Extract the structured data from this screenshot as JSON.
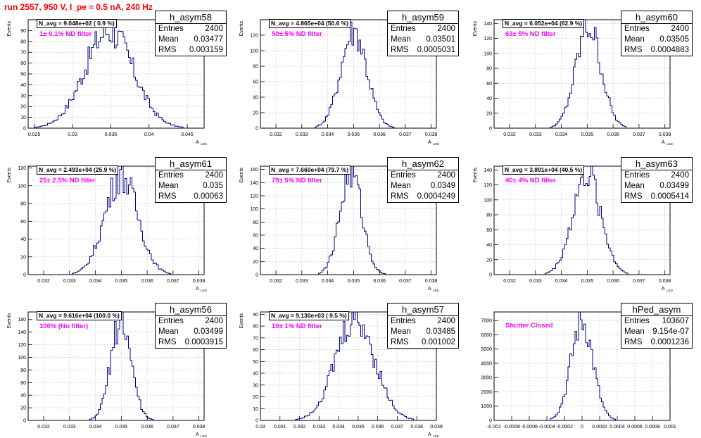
{
  "title": "run 2557,   950 V, I_pe ≈ 0.5 nA, 240 Hz",
  "colors": {
    "histogram": "#00008b",
    "title": "#ff0000",
    "filter": "#ff00ff",
    "grid": "#bfbfbf"
  },
  "stat_labels": {
    "entries": "Entries",
    "mean": "Mean",
    "rms": "RMS"
  },
  "chart_data": [
    {
      "type": "histogram",
      "name": "h_asym58",
      "entries": "2400",
      "mean": "0.03477",
      "rms": "0.003159",
      "navg": "N_avg = 9.048e+02 ( 0.9 %)",
      "filter": "1± 0.1% ND filter",
      "ylabel": "Events",
      "xlabel": "A",
      "xlim": [
        0.0242,
        0.0472
      ],
      "ylim": [
        0,
        100
      ],
      "xticks": [
        0.025,
        0.03,
        0.035,
        0.04,
        0.045
      ],
      "xticklabels": [
        "0.025",
        "0.03",
        "0.035",
        "0.04",
        "0.045"
      ],
      "yticks": [
        0,
        10,
        20,
        30,
        40,
        50,
        60,
        70,
        80,
        90
      ],
      "yticklabels": [
        "0",
        "10",
        "20",
        "30",
        "40",
        "50",
        "60",
        "70",
        "80",
        "90"
      ],
      "dist": {
        "center": 0.03477,
        "sigma": 0.003159,
        "peak": 90
      }
    },
    {
      "type": "histogram",
      "name": "h_asym59",
      "entries": "2400",
      "mean": "0.03501",
      "rms": "0.0005031",
      "navg": "N_avg = 4.865e+04 (50.6 %)",
      "filter": "50± 5% ND filter",
      "ylabel": "Events",
      "xlabel": "A",
      "xlim": [
        0.0314,
        0.0382
      ],
      "ylim": [
        0,
        140
      ],
      "xticks": [
        0.032,
        0.033,
        0.034,
        0.035,
        0.036,
        0.037,
        0.038
      ],
      "xticklabels": [
        "0.032",
        "0.033",
        "0.034",
        "0.035",
        "0.036",
        "0.037",
        "0.038"
      ],
      "yticks": [
        0,
        20,
        40,
        60,
        80,
        100,
        120
      ],
      "yticklabels": [
        "0",
        "20",
        "40",
        "60",
        "80",
        "100",
        "120"
      ],
      "dist": {
        "center": 0.03501,
        "sigma": 0.0005031,
        "peak": 126
      }
    },
    {
      "type": "histogram",
      "name": "h_asym60",
      "entries": "2400",
      "mean": "0.03505",
      "rms": "0.0004883",
      "navg": "N_avg = 6.052e+04 (62.9 %)",
      "filter": "63± 5% ND filter",
      "ylabel": "Events",
      "xlabel": "A",
      "xlim": [
        0.0314,
        0.0382
      ],
      "ylim": [
        0,
        145
      ],
      "xticks": [
        0.032,
        0.033,
        0.034,
        0.035,
        0.036,
        0.037,
        0.038
      ],
      "xticklabels": [
        "0.032",
        "0.033",
        "0.034",
        "0.035",
        "0.036",
        "0.037",
        "0.038"
      ],
      "yticks": [
        0,
        20,
        40,
        60,
        80,
        100,
        120,
        140
      ],
      "yticklabels": [
        "0",
        "20",
        "40",
        "60",
        "80",
        "100",
        "120",
        "140"
      ],
      "dist": {
        "center": 0.03505,
        "sigma": 0.0004883,
        "peak": 136
      }
    },
    {
      "type": "histogram",
      "name": "h_asym61",
      "entries": "2400",
      "mean": "0.035",
      "rms": "0.00063",
      "navg": "N_avg = 2.493e+04 (25.9 %)",
      "filter": "25± 2.5% ND filter",
      "ylabel": "Events",
      "xlabel": "A",
      "xlim": [
        0.0314,
        0.0382
      ],
      "ylim": [
        0,
        122
      ],
      "xticks": [
        0.032,
        0.033,
        0.034,
        0.035,
        0.036,
        0.037,
        0.038
      ],
      "xticklabels": [
        "0.032",
        "0.033",
        "0.034",
        "0.035",
        "0.036",
        "0.037",
        "0.038"
      ],
      "yticks": [
        0,
        20,
        40,
        60,
        80,
        100,
        120
      ],
      "yticklabels": [
        "0",
        "20",
        "40",
        "60",
        "80",
        "100",
        "120"
      ],
      "dist": {
        "center": 0.035,
        "sigma": 0.00063,
        "peak": 112
      }
    },
    {
      "type": "histogram",
      "name": "h_asym62",
      "entries": "2400",
      "mean": "0.0349",
      "rms": "0.0004249",
      "navg": "N_avg = 7.660e+04 (79.7 %)",
      "filter": "79± 5% ND filter",
      "ylabel": "Events",
      "xlabel": "A",
      "xlim": [
        0.0314,
        0.0382
      ],
      "ylim": [
        0,
        165
      ],
      "xticks": [
        0.032,
        0.033,
        0.034,
        0.035,
        0.036,
        0.037,
        0.038
      ],
      "xticklabels": [
        "0.032",
        "0.033",
        "0.034",
        "0.035",
        "0.036",
        "0.037",
        "0.038"
      ],
      "yticks": [
        0,
        20,
        40,
        60,
        80,
        100,
        120,
        140,
        160
      ],
      "yticklabels": [
        "0",
        "20",
        "40",
        "60",
        "80",
        "100",
        "120",
        "140",
        "160"
      ],
      "dist": {
        "center": 0.0349,
        "sigma": 0.0004249,
        "peak": 155
      }
    },
    {
      "type": "histogram",
      "name": "h_asym63",
      "entries": "2400",
      "mean": "0.03499",
      "rms": "0.0005414",
      "navg": "N_avg = 3.891e+04 (40.5 %)",
      "filter": "40± 4% ND filter",
      "ylabel": "Events",
      "xlabel": "A",
      "xlim": [
        0.0314,
        0.0382
      ],
      "ylim": [
        0,
        145
      ],
      "xticks": [
        0.032,
        0.033,
        0.034,
        0.035,
        0.036,
        0.037,
        0.038
      ],
      "xticklabels": [
        "0.032",
        "0.033",
        "0.034",
        "0.035",
        "0.036",
        "0.037",
        "0.038"
      ],
      "yticks": [
        0,
        20,
        40,
        60,
        80,
        100,
        120,
        140
      ],
      "yticklabels": [
        "0",
        "20",
        "40",
        "60",
        "80",
        "100",
        "120",
        "140"
      ],
      "dist": {
        "center": 0.03499,
        "sigma": 0.0005414,
        "peak": 135
      }
    },
    {
      "type": "histogram",
      "name": "h_asym56",
      "entries": "2400",
      "mean": "0.03499",
      "rms": "0.0003915",
      "navg": "N_avg = 9.616e+04 (100.0 %)",
      "filter": "100% (No filter)",
      "ylabel": "Events",
      "xlabel": "A",
      "xlim": [
        0.0314,
        0.0382
      ],
      "ylim": [
        0,
        172
      ],
      "xticks": [
        0.032,
        0.033,
        0.034,
        0.035,
        0.036,
        0.037,
        0.038
      ],
      "xticklabels": [
        "0.032",
        "0.033",
        "0.034",
        "0.035",
        "0.036",
        "0.037",
        "0.038"
      ],
      "yticks": [
        0,
        20,
        40,
        60,
        80,
        100,
        120,
        140,
        160
      ],
      "yticklabels": [
        "0",
        "20",
        "40",
        "60",
        "80",
        "100",
        "120",
        "140",
        "160"
      ],
      "dist": {
        "center": 0.03499,
        "sigma": 0.0003915,
        "peak": 160
      }
    },
    {
      "type": "histogram",
      "name": "h_asym57",
      "entries": "2400",
      "mean": "0.03485",
      "rms": "0.001002",
      "navg": "N_avg = 9.130e+03 ( 9.5 %)",
      "filter": "10± 1% ND filter",
      "ylabel": "Events",
      "xlabel": "A",
      "xlim": [
        0.03,
        0.039
      ],
      "ylim": [
        0,
        92
      ],
      "xticks": [
        0.03,
        0.031,
        0.032,
        0.033,
        0.034,
        0.035,
        0.036,
        0.037,
        0.038,
        0.039
      ],
      "xticklabels": [
        "0.03",
        "0.031",
        "0.032",
        "0.033",
        "0.034",
        "0.035",
        "0.036",
        "0.037",
        "0.038",
        "0.039"
      ],
      "yticks": [
        0,
        10,
        20,
        30,
        40,
        50,
        60,
        70,
        80,
        90
      ],
      "yticklabels": [
        "0",
        "10",
        "20",
        "30",
        "40",
        "50",
        "60",
        "70",
        "80",
        "90"
      ],
      "dist": {
        "center": 0.03485,
        "sigma": 0.001002,
        "peak": 86
      }
    },
    {
      "type": "histogram",
      "name": "hPed_asym",
      "entries": "103607",
      "mean": "9.154e-07",
      "rms": "0.0001236",
      "navg": "",
      "filter": "Shutter Closed",
      "ylabel": "",
      "xlabel": "",
      "xlim": [
        -0.001,
        0.001
      ],
      "ylim": [
        0,
        7600
      ],
      "xticks": [
        -0.001,
        -0.0008,
        -0.0006,
        -0.0004,
        -0.0002,
        0,
        0.0002,
        0.0004,
        0.0006,
        0.0008,
        0.001
      ],
      "xticklabels": [
        "-0.001",
        "-0.0008",
        "-0.0006",
        "-0.0004",
        "-0.0002",
        "0",
        "0.0002",
        "0.0004",
        "0.0006",
        "0.0008",
        "0.001"
      ],
      "yticks": [
        0,
        1000,
        2000,
        3000,
        4000,
        5000,
        6000,
        7000
      ],
      "yticklabels": [
        "0",
        "1000",
        "2000",
        "3000",
        "4000",
        "5000",
        "6000",
        "7000"
      ],
      "dist": {
        "center": 0.0,
        "sigma": 0.0001236,
        "peak": 6950
      }
    }
  ]
}
